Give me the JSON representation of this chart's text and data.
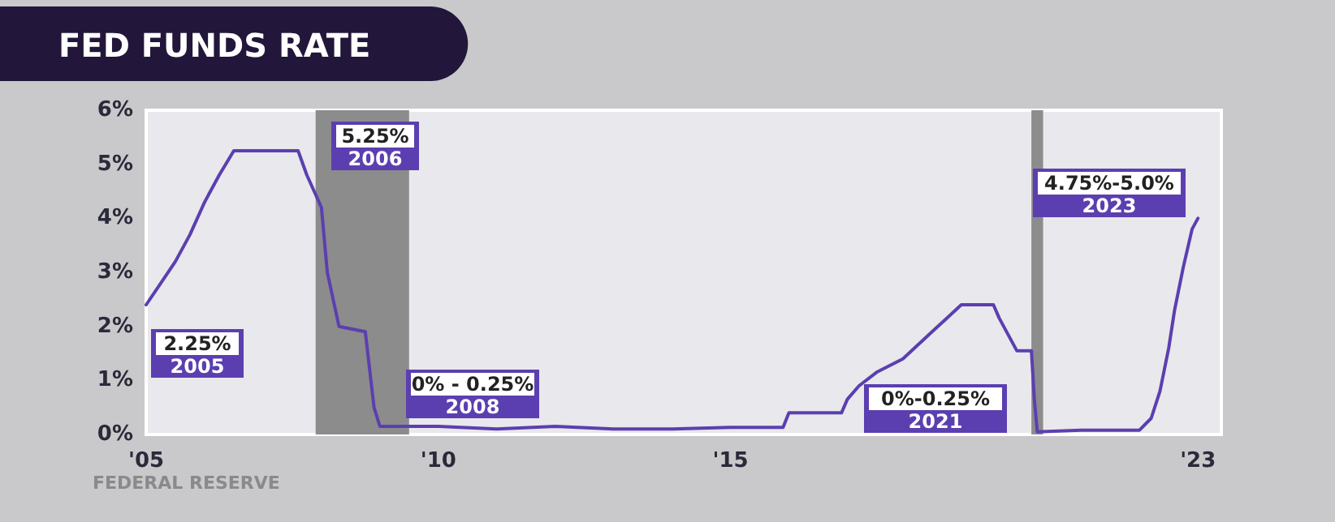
{
  "chart_data": {
    "type": "line",
    "title": "FED FUNDS RATE",
    "annotations": [
      "2.25%",
      "2005",
      "5.25%",
      "2006",
      "0% - 0.25%",
      "2008",
      "0%-0.25%",
      "2021",
      "4.75%-5.0%",
      "2023",
      "FEDERAL RESERVE"
    ],
    "x": [
      2005.0,
      2005.25,
      2005.5,
      2005.75,
      2006.0,
      2006.25,
      2006.5,
      2007.0,
      2007.6,
      2007.75,
      2008.0,
      2008.1,
      2008.3,
      2008.75,
      2008.9,
      2009.0,
      2009.5,
      2010,
      2011,
      2012,
      2013,
      2014,
      2015,
      2015.9,
      2016,
      2016.9,
      2017,
      2017.2,
      2017.5,
      2017.95,
      2018.2,
      2018.45,
      2018.7,
      2018.95,
      2019.5,
      2019.6,
      2019.75,
      2019.9,
      2020.15,
      2020.2,
      2020.25,
      2021,
      2022,
      2022.2,
      2022.35,
      2022.5,
      2022.6,
      2022.75,
      2022.9,
      2023.0
    ],
    "series": [
      {
        "color": "#5b3fb0",
        "values": [
          2.4,
          2.8,
          3.2,
          3.7,
          4.3,
          4.8,
          5.25,
          5.25,
          5.25,
          4.8,
          4.2,
          3.0,
          2.0,
          1.9,
          0.5,
          0.15,
          0.15,
          0.15,
          0.1,
          0.15,
          0.1,
          0.1,
          0.13,
          0.13,
          0.4,
          0.4,
          0.65,
          0.9,
          1.15,
          1.4,
          1.65,
          1.9,
          2.15,
          2.4,
          2.4,
          2.15,
          1.85,
          1.55,
          1.55,
          0.65,
          0.05,
          0.08,
          0.08,
          0.3,
          0.8,
          1.6,
          2.3,
          3.1,
          3.8,
          4.0
        ]
      }
    ],
    "xlim": [
      2005,
      2023.4
    ],
    "xticks": [
      {
        "value": 2005,
        "label": "'05"
      },
      {
        "value": 2010,
        "label": "'10"
      },
      {
        "value": 2015,
        "label": "'15"
      },
      {
        "value": 2023,
        "label": "'23"
      }
    ],
    "ylim": [
      0,
      6
    ],
    "yticks": [
      {
        "value": 0,
        "label": "0%"
      },
      {
        "value": 1,
        "label": "1%"
      },
      {
        "value": 2,
        "label": "2%"
      },
      {
        "value": 3,
        "label": "3%"
      },
      {
        "value": 4,
        "label": "4%"
      },
      {
        "value": 5,
        "label": "5%"
      },
      {
        "value": 6,
        "label": "6%"
      }
    ],
    "bands": [
      {
        "axis": "x",
        "from": 2007.9,
        "to": 2009.5,
        "color": "#8c8c8c"
      },
      {
        "axis": "x",
        "from": 2020.15,
        "to": 2020.35,
        "color": "#8c8c8c"
      }
    ],
    "grid": false,
    "marker": "none",
    "line_style": "solid"
  }
}
